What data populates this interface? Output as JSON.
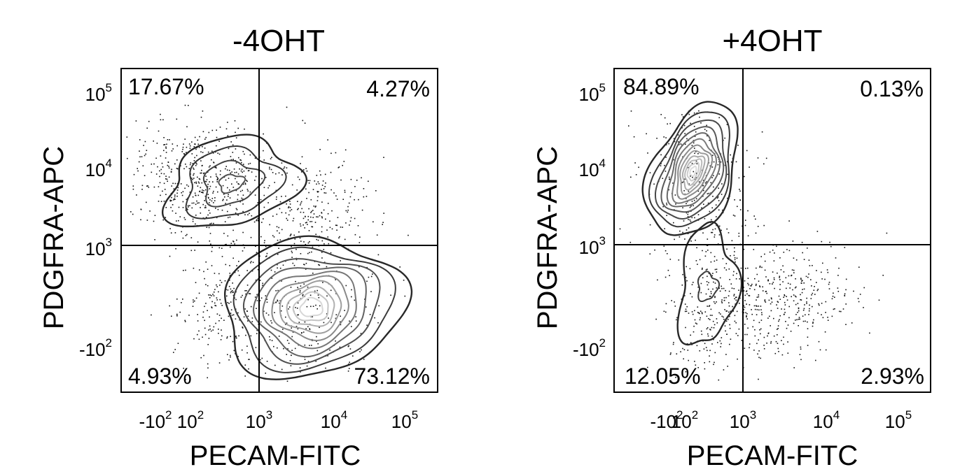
{
  "chart_data": [
    {
      "type": "scatter",
      "title": "-4OHT",
      "xlabel": "PECAM-FITC",
      "ylabel": "PDGFRA-APC",
      "xticks": [
        {
          "base": "-10",
          "exp": "2",
          "value": -100
        },
        {
          "base": "10",
          "exp": "2",
          "value": 100
        },
        {
          "base": "10",
          "exp": "3",
          "value": 1000
        },
        {
          "base": "10",
          "exp": "4",
          "value": 10000
        },
        {
          "base": "10",
          "exp": "5",
          "value": 100000
        }
      ],
      "yticks": [
        {
          "base": "-10",
          "exp": "2",
          "value": -100
        },
        {
          "base": "10",
          "exp": "3",
          "value": 1000
        },
        {
          "base": "10",
          "exp": "4",
          "value": 10000
        },
        {
          "base": "10",
          "exp": "5",
          "value": 100000
        }
      ],
      "gate": {
        "x": 850,
        "y": 1100
      },
      "quadrants": {
        "ul": "17.67%",
        "ur": "4.27%",
        "ll": "4.93%",
        "lr": "73.12%"
      },
      "populations": [
        {
          "x": 400,
          "y": 8000,
          "levels": 3
        },
        {
          "x": 4500,
          "y": 180,
          "levels": 9
        }
      ]
    },
    {
      "type": "scatter",
      "title": "+4OHT",
      "xlabel": "PECAM-FITC",
      "ylabel": "PDGFRA-APC",
      "xticks": [
        {
          "base": "-10",
          "exp": "2",
          "value": -100
        },
        {
          "base": "10",
          "exp": "2",
          "value": 100
        },
        {
          "base": "10",
          "exp": "3",
          "value": 1000
        },
        {
          "base": "10",
          "exp": "4",
          "value": 10000
        },
        {
          "base": "10",
          "exp": "5",
          "value": 100000
        }
      ],
      "yticks": [
        {
          "base": "-10",
          "exp": "2",
          "value": -100
        },
        {
          "base": "10",
          "exp": "3",
          "value": 1000
        },
        {
          "base": "10",
          "exp": "4",
          "value": 10000
        },
        {
          "base": "10",
          "exp": "5",
          "value": 100000
        }
      ],
      "gate": {
        "x": 800,
        "y": 1050
      },
      "quadrants": {
        "ul": "84.89%",
        "ur": "0.13%",
        "ll": "12.05%",
        "lr": "2.93%"
      },
      "populations": [
        {
          "x": 150,
          "y": 12000,
          "levels": 12
        },
        {
          "x": 150,
          "y": 100,
          "levels": 2
        }
      ]
    }
  ]
}
